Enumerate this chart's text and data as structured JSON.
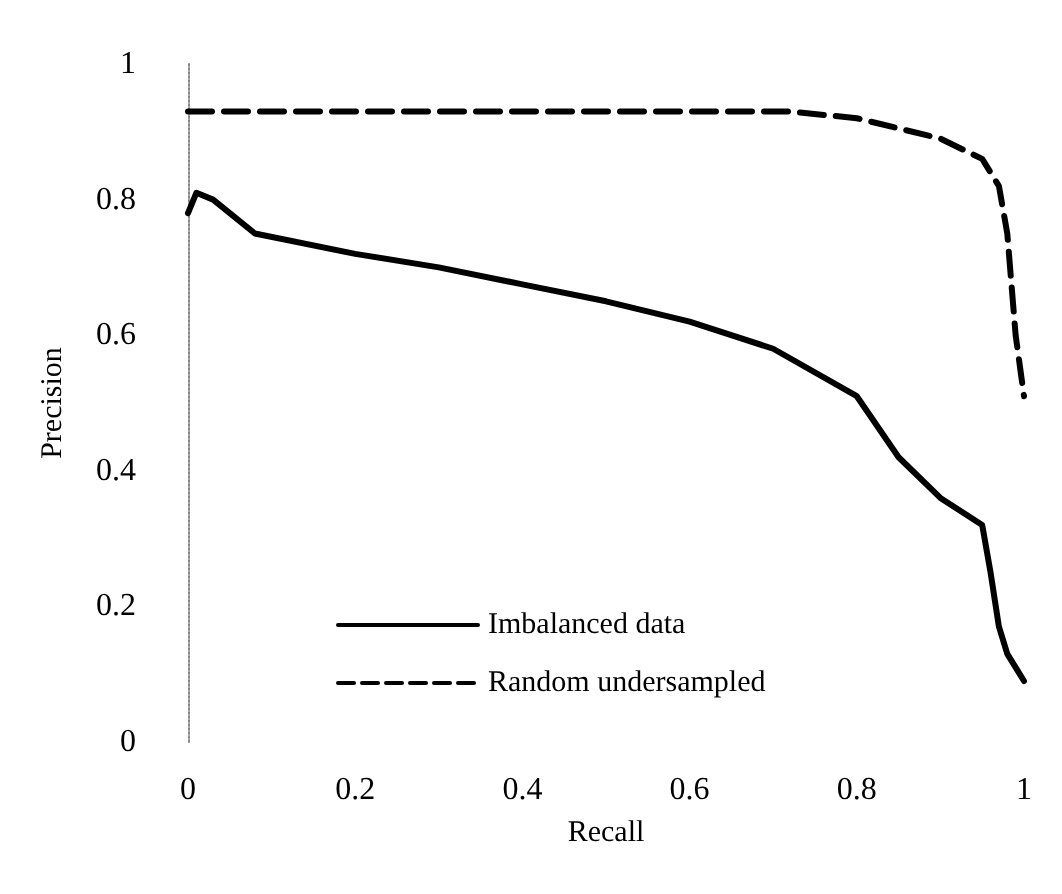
{
  "chart_data": {
    "type": "line",
    "xlabel": "Recall",
    "ylabel": "Precision",
    "xlim": [
      0,
      1
    ],
    "xticks": [
      0,
      0.2,
      0.4,
      0.6,
      0.8,
      1
    ],
    "ylim": [
      0,
      1
    ],
    "yticks": [
      0,
      0.2,
      0.4,
      0.6,
      0.8,
      1
    ],
    "grid": false,
    "legend": "bottom left",
    "marker": "none",
    "series": [
      {
        "name": "Imbalanced data",
        "color": "#000000",
        "line_style": "solid",
        "x": [
          0,
          0.01,
          0.03,
          0.08,
          0.2,
          0.3,
          0.4,
          0.5,
          0.6,
          0.7,
          0.8,
          0.85,
          0.9,
          0.95,
          0.96,
          0.97,
          0.98,
          1.0
        ],
        "values": [
          0.78,
          0.81,
          0.8,
          0.75,
          0.72,
          0.7,
          0.675,
          0.65,
          0.62,
          0.58,
          0.51,
          0.42,
          0.36,
          0.32,
          0.25,
          0.17,
          0.13,
          0.09
        ]
      },
      {
        "name": "Random undersampled",
        "color": "#000000",
        "line_style": "dashed",
        "x": [
          0,
          0.2,
          0.4,
          0.6,
          0.72,
          0.8,
          0.9,
          0.95,
          0.97,
          0.98,
          0.99,
          1.0
        ],
        "values": [
          0.93,
          0.93,
          0.93,
          0.93,
          0.93,
          0.92,
          0.89,
          0.86,
          0.82,
          0.75,
          0.6,
          0.51
        ]
      }
    ]
  }
}
